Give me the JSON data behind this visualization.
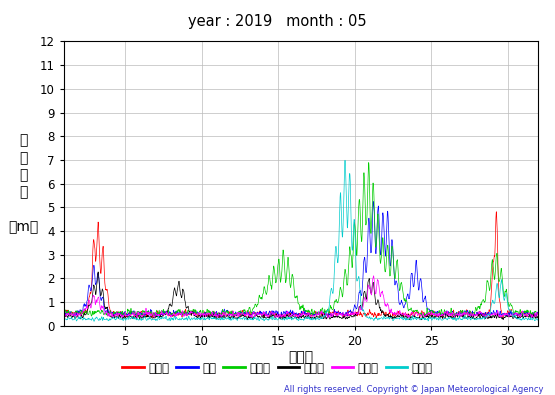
{
  "title": "year : 2019   month : 05",
  "xlabel": "（日）",
  "ylabel_lines": [
    "有",
    "義",
    "波",
    "高",
    "",
    "（m）"
  ],
  "copyright": "All rights reserved. Copyright © Japan Meteorological Agency",
  "ylim": [
    0,
    12
  ],
  "yticks": [
    0,
    1,
    2,
    3,
    4,
    5,
    6,
    7,
    8,
    9,
    10,
    11,
    12
  ],
  "xlim": [
    1,
    32
  ],
  "xticks": [
    5,
    10,
    15,
    20,
    25,
    30
  ],
  "series_names": [
    "上ノ国",
    "唐桑",
    "石廈崎",
    "経ヶ屬",
    "生月島",
    "屋久島"
  ],
  "series_colors": [
    "#ff0000",
    "#0000ff",
    "#00cc00",
    "#000000",
    "#ff00ff",
    "#00cccc"
  ],
  "background_color": "#ffffff",
  "grid_color": "#bbbbbb"
}
